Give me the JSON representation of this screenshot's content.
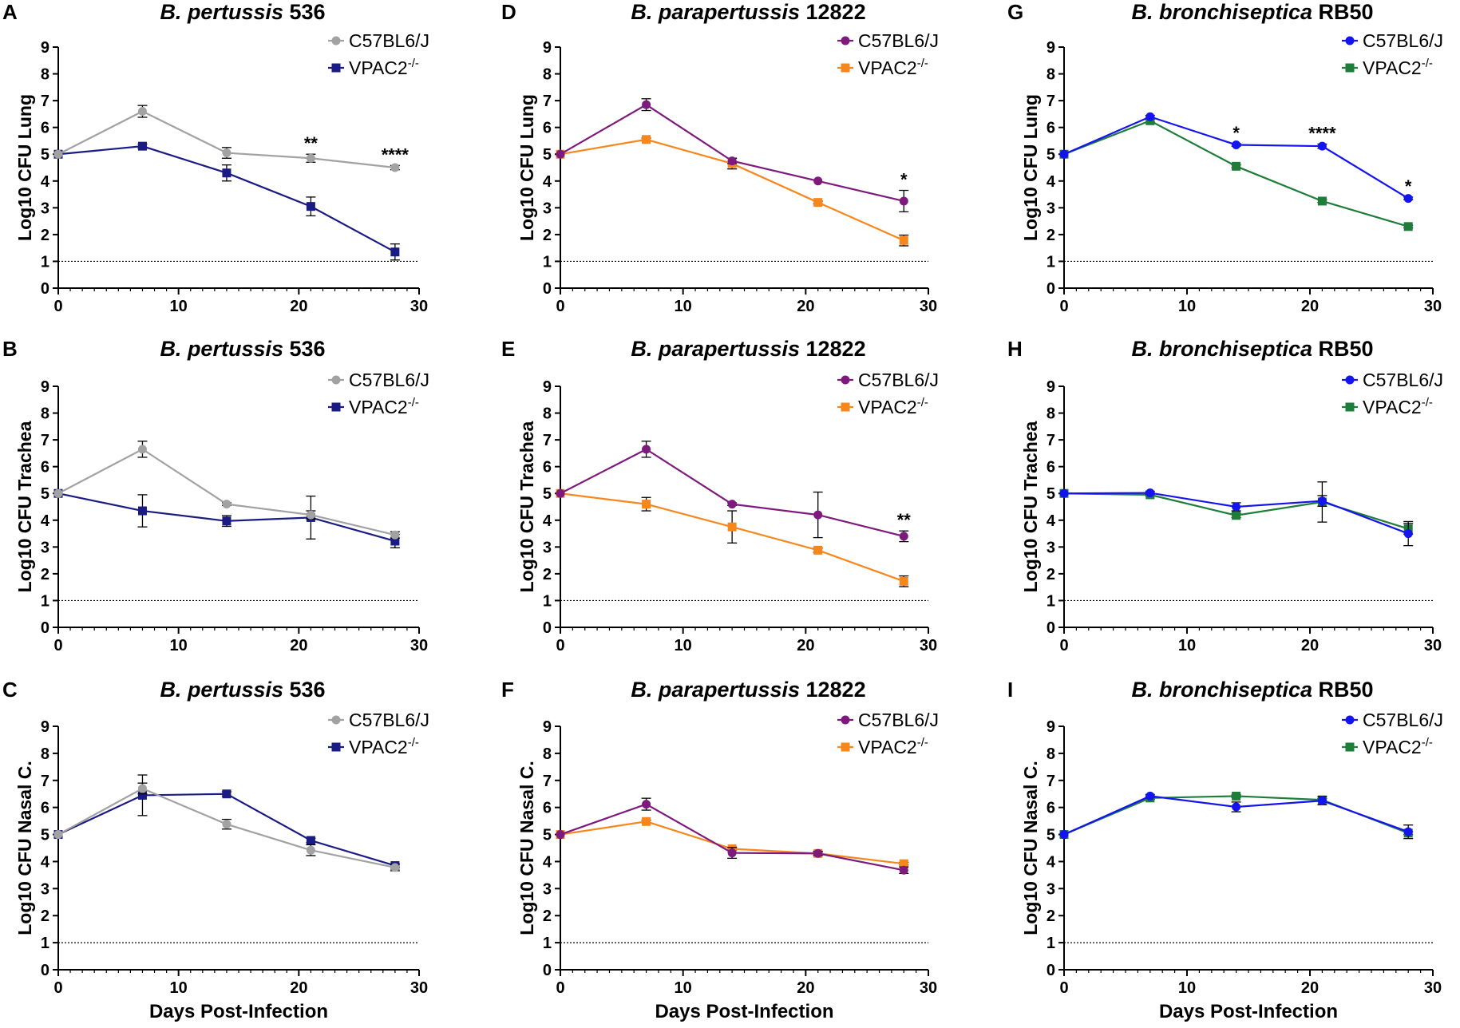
{
  "figure": {
    "x_axis_label": "Days Post-Infection",
    "legend_entry_1": "C57BL6/J",
    "legend_entry_2_base": "VPAC2",
    "legend_entry_2_sup": "-/-"
  },
  "colors": {
    "pertussis_wt": "#a2a2a2",
    "pertussis_ko": "#1b1b84",
    "parapertussis_wt": "#7e1a7e",
    "parapertussis_ko": "#f7871c",
    "bronchiseptica_wt": "#1414f0",
    "bronchiseptica_ko": "#1f7d3a"
  },
  "chart_data": [
    {
      "type": "line",
      "panel": "A",
      "title_italic": "B. pertussis",
      "title_rest": " 536",
      "ylabel": "Log10 CFU Lung",
      "xlabel": "",
      "xlim": [
        0,
        30
      ],
      "ylim": [
        0,
        9
      ],
      "xticks": [
        0,
        10,
        20,
        30
      ],
      "yticks": [
        0,
        1,
        2,
        3,
        4,
        5,
        6,
        7,
        8,
        9
      ],
      "detection_limit": 1,
      "series": [
        {
          "name": "C57BL6/J",
          "marker": "circle",
          "color": "#a2a2a2",
          "x": [
            0,
            7,
            14,
            21,
            28
          ],
          "y": [
            5,
            6.6,
            5.05,
            4.85,
            4.5
          ],
          "err": [
            0,
            0.22,
            0.2,
            0.15,
            0.08
          ]
        },
        {
          "name": "VPAC2-/-",
          "marker": "square",
          "color": "#1b1b84",
          "x": [
            0,
            7,
            14,
            21,
            28
          ],
          "y": [
            5,
            5.3,
            4.3,
            3.05,
            1.35
          ],
          "err": [
            0,
            0.08,
            0.3,
            0.35,
            0.3
          ]
        }
      ],
      "annotations": [
        {
          "x": 21,
          "text": "**"
        },
        {
          "x": 28,
          "text": "****"
        }
      ]
    },
    {
      "type": "line",
      "panel": "B",
      "title_italic": "B. pertussis",
      "title_rest": " 536",
      "ylabel": "Log10 CFU Trachea",
      "xlabel": "",
      "xlim": [
        0,
        30
      ],
      "ylim": [
        0,
        9
      ],
      "xticks": [
        0,
        10,
        20,
        30
      ],
      "yticks": [
        0,
        1,
        2,
        3,
        4,
        5,
        6,
        7,
        8,
        9
      ],
      "detection_limit": 1,
      "series": [
        {
          "name": "C57BL6/J",
          "marker": "circle",
          "color": "#a2a2a2",
          "x": [
            0,
            7,
            14,
            21,
            28
          ],
          "y": [
            5,
            6.65,
            4.6,
            4.2,
            3.45
          ],
          "err": [
            0,
            0.3,
            0.05,
            0.15,
            0.12
          ]
        },
        {
          "name": "VPAC2-/-",
          "marker": "square",
          "color": "#1b1b84",
          "x": [
            0,
            7,
            14,
            21,
            28
          ],
          "y": [
            5,
            4.35,
            3.97,
            4.1,
            3.22
          ],
          "err": [
            0,
            0.6,
            0.2,
            0.8,
            0.25
          ]
        }
      ],
      "annotations": []
    },
    {
      "type": "line",
      "panel": "C",
      "title_italic": "B. pertussis",
      "title_rest": " 536",
      "ylabel": "Log10 CFU Nasal C.",
      "xlabel": "Days Post-Infection",
      "xlim": [
        0,
        30
      ],
      "ylim": [
        0,
        9
      ],
      "xticks": [
        0,
        10,
        20,
        30
      ],
      "yticks": [
        0,
        1,
        2,
        3,
        4,
        5,
        6,
        7,
        8,
        9
      ],
      "detection_limit": 1,
      "series": [
        {
          "name": "C57BL6/J",
          "marker": "circle",
          "color": "#a2a2a2",
          "x": [
            0,
            7,
            14,
            21,
            28
          ],
          "y": [
            5,
            6.7,
            5.38,
            4.42,
            3.78
          ],
          "err": [
            0,
            0.2,
            0.18,
            0.2,
            0.12
          ]
        },
        {
          "name": "VPAC2-/-",
          "marker": "square",
          "color": "#1b1b84",
          "x": [
            0,
            7,
            14,
            21,
            28
          ],
          "y": [
            5,
            6.45,
            6.5,
            4.78,
            3.85
          ],
          "err": [
            0,
            0.75,
            0.08,
            0.08,
            0.06
          ]
        }
      ],
      "annotations": []
    },
    {
      "type": "line",
      "panel": "D",
      "title_italic": "B. parapertussis",
      "title_rest": " 12822",
      "ylabel": "Log10 CFU Lung",
      "xlabel": "",
      "xlim": [
        0,
        30
      ],
      "ylim": [
        0,
        9
      ],
      "xticks": [
        0,
        10,
        20,
        30
      ],
      "yticks": [
        0,
        1,
        2,
        3,
        4,
        5,
        6,
        7,
        8,
        9
      ],
      "detection_limit": 1,
      "series": [
        {
          "name": "C57BL6/J",
          "marker": "circle",
          "color": "#7e1a7e",
          "x": [
            0,
            7,
            14,
            21,
            28
          ],
          "y": [
            5,
            6.85,
            4.75,
            4.0,
            3.25
          ],
          "err": [
            0,
            0.22,
            0.1,
            0,
            0.4
          ]
        },
        {
          "name": "VPAC2-/-",
          "marker": "square",
          "color": "#f7871c",
          "x": [
            0,
            7,
            14,
            21,
            28
          ],
          "y": [
            5,
            5.55,
            4.65,
            3.2,
            1.78
          ],
          "err": [
            0,
            0.05,
            0.2,
            0.05,
            0.2
          ]
        }
      ],
      "annotations": [
        {
          "x": 28,
          "text": "*"
        }
      ]
    },
    {
      "type": "line",
      "panel": "E",
      "title_italic": "B. parapertussis",
      "title_rest": " 12822",
      "ylabel": "Log10 CFU Trachea",
      "xlabel": "",
      "xlim": [
        0,
        30
      ],
      "ylim": [
        0,
        9
      ],
      "xticks": [
        0,
        10,
        20,
        30
      ],
      "yticks": [
        0,
        1,
        2,
        3,
        4,
        5,
        6,
        7,
        8,
        9
      ],
      "detection_limit": 1,
      "series": [
        {
          "name": "C57BL6/J",
          "marker": "circle",
          "color": "#7e1a7e",
          "x": [
            0,
            7,
            14,
            21,
            28
          ],
          "y": [
            5,
            6.65,
            4.6,
            4.2,
            3.4
          ],
          "err": [
            0,
            0.3,
            0.05,
            0.85,
            0.2
          ]
        },
        {
          "name": "VPAC2-/-",
          "marker": "square",
          "color": "#f7871c",
          "x": [
            0,
            7,
            14,
            21,
            28
          ],
          "y": [
            5,
            4.6,
            3.75,
            2.88,
            1.72
          ],
          "err": [
            0,
            0.25,
            0.6,
            0.08,
            0.2
          ]
        }
      ],
      "annotations": [
        {
          "x": 28,
          "text": "**"
        }
      ]
    },
    {
      "type": "line",
      "panel": "F",
      "title_italic": "B. parapertussis",
      "title_rest": " 12822",
      "ylabel": "Log10 CFU Nasal C.",
      "xlabel": "Days Post-Infection",
      "xlim": [
        0,
        30
      ],
      "ylim": [
        0,
        9
      ],
      "xticks": [
        0,
        10,
        20,
        30
      ],
      "yticks": [
        0,
        1,
        2,
        3,
        4,
        5,
        6,
        7,
        8,
        9
      ],
      "detection_limit": 1,
      "series": [
        {
          "name": "C57BL6/J",
          "marker": "circle",
          "color": "#7e1a7e",
          "x": [
            0,
            7,
            14,
            21,
            28
          ],
          "y": [
            5,
            6.12,
            4.32,
            4.3,
            3.68
          ],
          "err": [
            0,
            0.22,
            0.2,
            0.08,
            0.12
          ]
        },
        {
          "name": "VPAC2-/-",
          "marker": "square",
          "color": "#f7871c",
          "x": [
            0,
            7,
            14,
            21,
            28
          ],
          "y": [
            5,
            5.48,
            4.47,
            4.3,
            3.92
          ],
          "err": [
            0,
            0.05,
            0.05,
            0.05,
            0.05
          ]
        }
      ],
      "annotations": []
    },
    {
      "type": "line",
      "panel": "G",
      "title_italic": "B. bronchiseptica",
      "title_rest": " RB50",
      "ylabel": "Log10 CFU Lung",
      "xlabel": "",
      "xlim": [
        0,
        30
      ],
      "ylim": [
        0,
        9
      ],
      "xticks": [
        0,
        10,
        20,
        30
      ],
      "yticks": [
        0,
        1,
        2,
        3,
        4,
        5,
        6,
        7,
        8,
        9
      ],
      "detection_limit": 1,
      "series": [
        {
          "name": "C57BL6/J",
          "marker": "circle",
          "color": "#1414f0",
          "x": [
            0,
            7,
            14,
            21,
            28
          ],
          "y": [
            5,
            6.4,
            5.35,
            5.3,
            3.35
          ],
          "err": [
            0,
            0.05,
            0.05,
            0.08,
            0.05
          ]
        },
        {
          "name": "VPAC2-/-",
          "marker": "square",
          "color": "#1f7d3a",
          "x": [
            0,
            7,
            14,
            21,
            28
          ],
          "y": [
            5,
            6.25,
            4.55,
            3.25,
            2.3
          ],
          "err": [
            0,
            0.05,
            0.05,
            0.05,
            0.05
          ]
        }
      ],
      "annotations": [
        {
          "x": 14,
          "text": "*"
        },
        {
          "x": 21,
          "text": "****"
        },
        {
          "x": 28,
          "text": "*"
        }
      ]
    },
    {
      "type": "line",
      "panel": "H",
      "title_italic": "B. bronchiseptica",
      "title_rest": " RB50",
      "ylabel": "Log10 CFU Trachea",
      "xlabel": "",
      "xlim": [
        0,
        30
      ],
      "ylim": [
        0,
        9
      ],
      "xticks": [
        0,
        10,
        20,
        30
      ],
      "yticks": [
        0,
        1,
        2,
        3,
        4,
        5,
        6,
        7,
        8,
        9
      ],
      "detection_limit": 1,
      "series": [
        {
          "name": "C57BL6/J",
          "marker": "circle",
          "color": "#1414f0",
          "x": [
            0,
            7,
            14,
            21,
            28
          ],
          "y": [
            5,
            5.02,
            4.5,
            4.72,
            3.5
          ],
          "err": [
            0,
            0.05,
            0.15,
            0.2,
            0.45
          ]
        },
        {
          "name": "VPAC2-/-",
          "marker": "square",
          "color": "#1f7d3a",
          "x": [
            0,
            7,
            14,
            21,
            28
          ],
          "y": [
            5,
            4.95,
            4.18,
            4.68,
            3.68
          ],
          "err": [
            0,
            0.05,
            0.08,
            0.75,
            0.2
          ]
        }
      ],
      "annotations": []
    },
    {
      "type": "line",
      "panel": "I",
      "title_italic": "B. bronchiseptica",
      "title_rest": " RB50",
      "ylabel": "Log10 CFU Nasal C.",
      "xlabel": "Days Post-Infection",
      "xlim": [
        0,
        30
      ],
      "ylim": [
        0,
        9
      ],
      "xticks": [
        0,
        10,
        20,
        30
      ],
      "yticks": [
        0,
        1,
        2,
        3,
        4,
        5,
        6,
        7,
        8,
        9
      ],
      "detection_limit": 1,
      "series": [
        {
          "name": "C57BL6/J",
          "marker": "circle",
          "color": "#1414f0",
          "x": [
            0,
            7,
            14,
            21,
            28
          ],
          "y": [
            5,
            6.42,
            6.02,
            6.25,
            5.1
          ],
          "err": [
            0,
            0.05,
            0.18,
            0.15,
            0.25
          ]
        },
        {
          "name": "VPAC2-/-",
          "marker": "square",
          "color": "#1f7d3a",
          "x": [
            0,
            7,
            14,
            21,
            28
          ],
          "y": [
            5,
            6.35,
            6.42,
            6.28,
            5.05
          ],
          "err": [
            0,
            0.05,
            0.05,
            0.05,
            0.05
          ]
        }
      ],
      "annotations": []
    }
  ]
}
